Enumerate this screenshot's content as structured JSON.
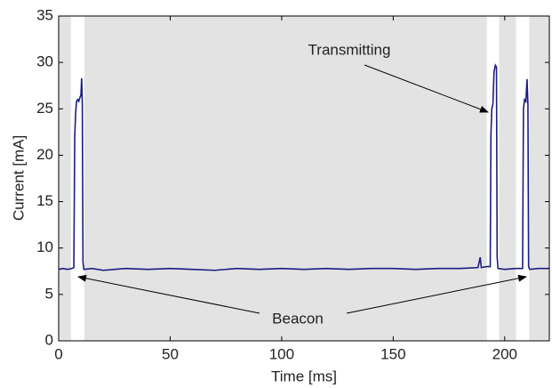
{
  "chart_data": {
    "type": "line",
    "xlabel": "Time [ms]",
    "ylabel": "Current [mA]",
    "xlim": [
      0,
      220
    ],
    "ylim": [
      0,
      35
    ],
    "xticks": [
      0,
      50,
      100,
      150,
      200
    ],
    "yticks": [
      0,
      5,
      10,
      15,
      20,
      25,
      30,
      35
    ],
    "shaded_spans": [
      [
        0,
        5.5
      ],
      [
        11.5,
        192
      ],
      [
        197.5,
        205
      ],
      [
        211,
        220
      ]
    ],
    "shade_color": "#e3e3e3",
    "annotations": [
      "Transmitting",
      "Beacon"
    ],
    "x": [
      0,
      2,
      4,
      6,
      6.8,
      7.2,
      7.6,
      8,
      8.5,
      9,
      9.5,
      10,
      10.3,
      10.6,
      10.9,
      11.3,
      15,
      20,
      30,
      40,
      50,
      60,
      70,
      80,
      90,
      100,
      110,
      120,
      130,
      140,
      150,
      160,
      170,
      180,
      188,
      189,
      189.5,
      192,
      193.5,
      193.8,
      194.2,
      194.7,
      195.2,
      195.8,
      196.3,
      196.6,
      197,
      200,
      205,
      208,
      208.4,
      208.9,
      209.5,
      210,
      210.4,
      210.7,
      211.2,
      215,
      220
    ],
    "series": [
      {
        "color": "#1c1c84",
        "values": [
          7.7,
          7.8,
          7.7,
          7.8,
          7.9,
          22,
          24.5,
          25.8,
          26,
          25.8,
          26.2,
          26.5,
          28.3,
          25.5,
          8.5,
          7.7,
          7.8,
          7.6,
          7.8,
          7.7,
          7.8,
          7.7,
          7.6,
          7.8,
          7.7,
          7.8,
          7.7,
          7.8,
          7.7,
          7.8,
          7.8,
          7.7,
          7.8,
          7.8,
          7.9,
          9,
          7.9,
          8,
          8,
          22,
          25,
          25.5,
          29,
          29.7,
          29.5,
          9,
          7.8,
          7.7,
          7.8,
          7.8,
          25,
          26,
          25.8,
          28.2,
          25.5,
          8,
          7.7,
          7.8,
          7.8
        ]
      }
    ]
  }
}
